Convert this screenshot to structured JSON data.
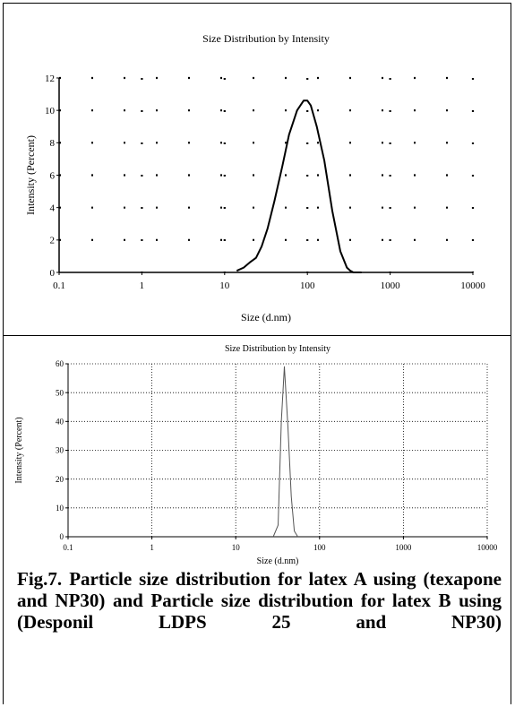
{
  "chart_data": [
    {
      "type": "line",
      "title": "Size Distribution by Intensity",
      "xlabel": "Size (d.nm)",
      "ylabel": "Intensity (Percent)",
      "xscale": "log",
      "xlim": [
        0.1,
        10000
      ],
      "ylim": [
        0,
        12
      ],
      "x_ticks": [
        "0.1",
        "1",
        "10",
        "100",
        "1000",
        "10000"
      ],
      "y_ticks": [
        "0",
        "2",
        "4",
        "6",
        "8",
        "10",
        "12"
      ],
      "grid": "dotted",
      "x": [
        14,
        17,
        20,
        24,
        28,
        33,
        40,
        50,
        60,
        75,
        90,
        100,
        110,
        130,
        160,
        200,
        250,
        300,
        330,
        360,
        400,
        450
      ],
      "y": [
        0.1,
        0.3,
        0.6,
        0.9,
        1.6,
        2.7,
        4.4,
        6.6,
        8.5,
        10.0,
        10.6,
        10.6,
        10.3,
        9.0,
        6.9,
        3.8,
        1.3,
        0.3,
        0.1,
        0.0,
        0.0,
        0.0
      ]
    },
    {
      "type": "line",
      "title": "Size Distribution by Intensity",
      "xlabel": "Size (d.nm)",
      "ylabel": "Intensity (Percent)",
      "xscale": "log",
      "xlim": [
        0.1,
        10000
      ],
      "ylim": [
        0,
        60
      ],
      "x_ticks": [
        "0.1",
        "1",
        "10",
        "100",
        "1000",
        "10000"
      ],
      "y_ticks": [
        "0",
        "10",
        "20",
        "30",
        "40",
        "50",
        "60"
      ],
      "grid": "dotted",
      "x": [
        28,
        32,
        35,
        38,
        42,
        46,
        50,
        55
      ],
      "y": [
        0,
        4,
        40,
        59,
        38,
        14,
        2,
        0
      ]
    }
  ],
  "caption": "Fig.7. Particle size distribution for latex A using (texapone and NP30) and Particle size distribution for latex B using (Desponil LDPS 25 and NP30)"
}
